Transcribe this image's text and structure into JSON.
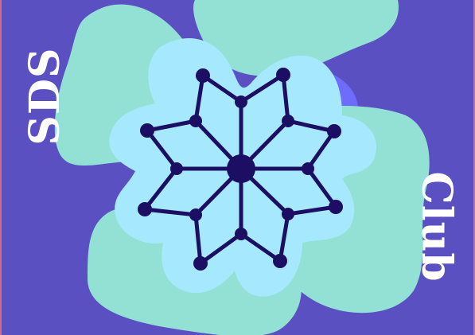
{
  "logo": {
    "left_word": "SDS",
    "right_word": "Club",
    "icon": "snowflake-network-icon"
  },
  "colors": {
    "background": "#5b50c2",
    "edge": "#d36b86",
    "blob_mint": "#93e1d5",
    "blob_light": "#a6e9ff",
    "accent_blue": "#6d6cfb",
    "network": "#1c0e63",
    "text": "#ffffff"
  }
}
